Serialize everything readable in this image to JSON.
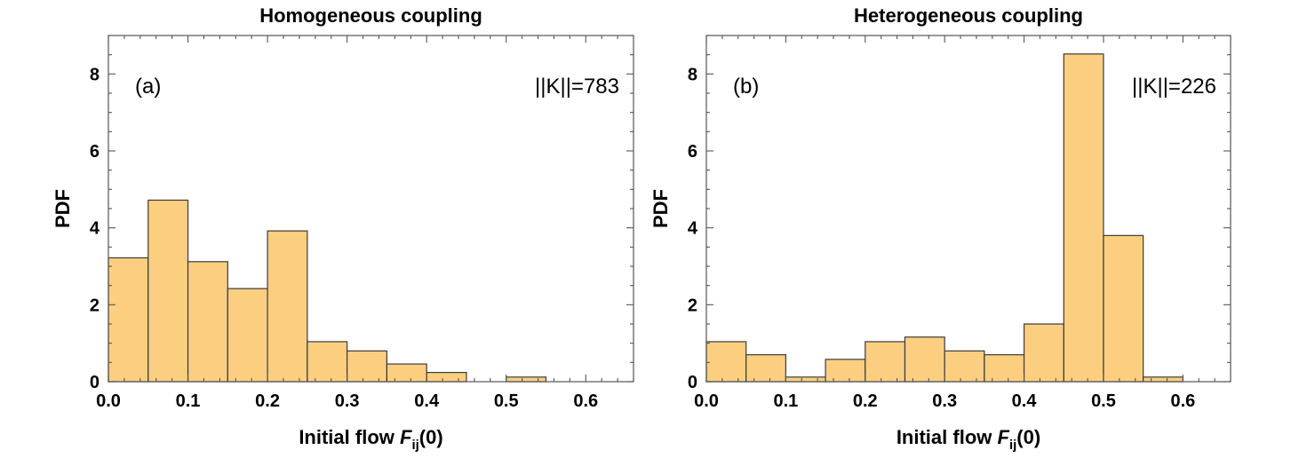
{
  "chart_data": [
    {
      "type": "bar",
      "title": "Homogeneous coupling",
      "xlabel_main": "Initial flow ",
      "xlabel_italic": "F",
      "xlabel_sub": "ij",
      "xlabel_tail": "(0)",
      "ylabel": "PDF",
      "panel_label": "(a)",
      "annotation": "||K||=783",
      "xlim": [
        0,
        0.66
      ],
      "ylim": [
        0,
        9
      ],
      "xticks": [
        0.0,
        0.1,
        0.2,
        0.3,
        0.4,
        0.5,
        0.6
      ],
      "xtick_labels": [
        "0.0",
        "0.1",
        "0.2",
        "0.3",
        "0.4",
        "0.5",
        "0.6"
      ],
      "yticks": [
        0,
        2,
        4,
        6,
        8
      ],
      "ytick_labels": [
        "0",
        "2",
        "4",
        "6",
        "8"
      ],
      "bin_width": 0.05,
      "bins": [
        {
          "x0": 0.0,
          "value": 3.22
        },
        {
          "x0": 0.05,
          "value": 4.72
        },
        {
          "x0": 0.1,
          "value": 3.12
        },
        {
          "x0": 0.15,
          "value": 2.42
        },
        {
          "x0": 0.2,
          "value": 3.92
        },
        {
          "x0": 0.25,
          "value": 1.04
        },
        {
          "x0": 0.3,
          "value": 0.8
        },
        {
          "x0": 0.35,
          "value": 0.46
        },
        {
          "x0": 0.4,
          "value": 0.24
        },
        {
          "x0": 0.5,
          "value": 0.12
        }
      ]
    },
    {
      "type": "bar",
      "title": "Heterogeneous coupling",
      "xlabel_main": "Initial flow ",
      "xlabel_italic": "F",
      "xlabel_sub": "ij",
      "xlabel_tail": "(0)",
      "ylabel": "PDF",
      "panel_label": "(b)",
      "annotation": "||K||=226",
      "xlim": [
        0,
        0.66
      ],
      "ylim": [
        0,
        9
      ],
      "xticks": [
        0.0,
        0.1,
        0.2,
        0.3,
        0.4,
        0.5,
        0.6
      ],
      "xtick_labels": [
        "0.0",
        "0.1",
        "0.2",
        "0.3",
        "0.4",
        "0.5",
        "0.6"
      ],
      "yticks": [
        0,
        2,
        4,
        6,
        8
      ],
      "ytick_labels": [
        "0",
        "2",
        "4",
        "6",
        "8"
      ],
      "bin_width": 0.05,
      "bins": [
        {
          "x0": 0.0,
          "value": 1.04
        },
        {
          "x0": 0.05,
          "value": 0.7
        },
        {
          "x0": 0.1,
          "value": 0.12
        },
        {
          "x0": 0.15,
          "value": 0.58
        },
        {
          "x0": 0.2,
          "value": 1.04
        },
        {
          "x0": 0.25,
          "value": 1.16
        },
        {
          "x0": 0.3,
          "value": 0.8
        },
        {
          "x0": 0.35,
          "value": 0.7
        },
        {
          "x0": 0.4,
          "value": 1.5
        },
        {
          "x0": 0.45,
          "value": 8.52
        },
        {
          "x0": 0.5,
          "value": 3.8
        },
        {
          "x0": 0.55,
          "value": 0.12
        }
      ]
    }
  ]
}
